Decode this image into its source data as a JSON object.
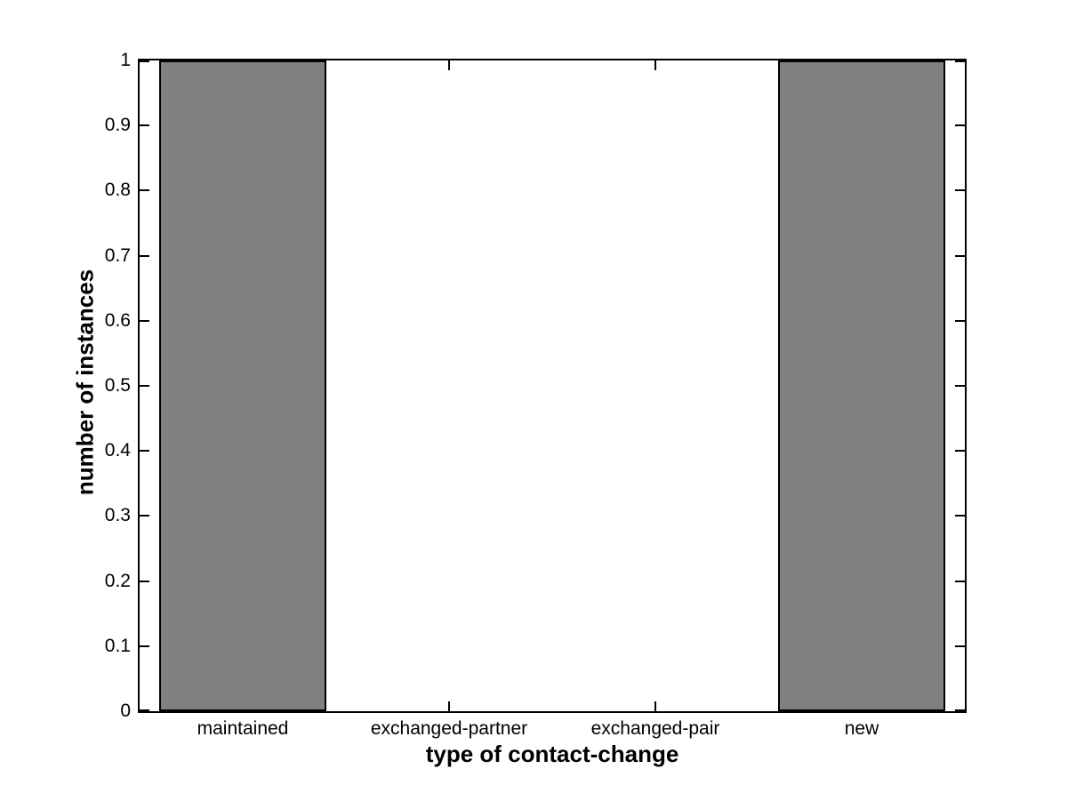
{
  "figure": {
    "background_color": "#ffffff"
  },
  "chart_data": {
    "type": "bar",
    "categories": [
      "maintained",
      "exchanged-partner",
      "exchanged-pair",
      "new"
    ],
    "values": [
      1,
      0,
      0,
      1
    ],
    "xlabel": "type of contact-change",
    "ylabel": "number of instances",
    "ylim": [
      0,
      1
    ],
    "yticks": {
      "values": [
        0,
        0.1,
        0.2,
        0.3,
        0.4,
        0.5,
        0.6,
        0.7,
        0.8,
        0.9,
        1
      ],
      "labels": [
        "0",
        "0.1",
        "0.2",
        "0.3",
        "0.4",
        "0.5",
        "0.6",
        "0.7",
        "0.8",
        "0.9",
        "1"
      ]
    },
    "bar_color": "#808080",
    "bar_edge_color": "#000000",
    "axis_color": "#000000",
    "grid": false,
    "legend": false,
    "box": true,
    "tick_direction": "in",
    "bar_width_fraction": 0.8
  }
}
